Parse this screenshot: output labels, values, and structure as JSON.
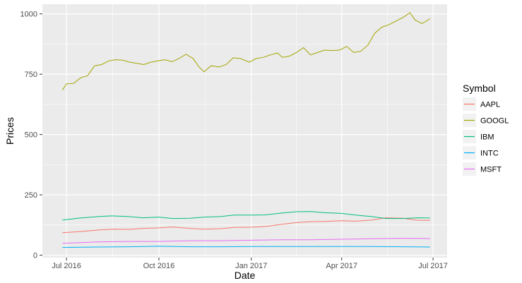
{
  "chart_data": {
    "type": "line",
    "xlabel": "Date",
    "ylabel": "Prices",
    "xlim": [
      "2016-06-07",
      "2017-07-15"
    ],
    "ylim": [
      -10,
      1040
    ],
    "x_ticks": [
      {
        "date": "2016-07-01",
        "label": "Jul 2016"
      },
      {
        "date": "2016-10-01",
        "label": "Oct 2016"
      },
      {
        "date": "2017-01-01",
        "label": "Jan 2017"
      },
      {
        "date": "2017-04-01",
        "label": "Apr 2017"
      },
      {
        "date": "2017-07-01",
        "label": "Jul 2017"
      }
    ],
    "y_ticks": [
      0,
      250,
      500,
      750,
      1000
    ],
    "y_tick_labels": [
      "0",
      "250",
      "500",
      "750",
      "1000"
    ],
    "grid": true,
    "panel_background": "#ebebeb",
    "grid_color": "#ffffff",
    "legend": {
      "title": "Symbol",
      "position": "right"
    },
    "series": [
      {
        "name": "AAPL",
        "color": "#f8766d",
        "points": [
          [
            "2016-06-27",
            93
          ],
          [
            "2016-07-15",
            98
          ],
          [
            "2016-08-01",
            104
          ],
          [
            "2016-08-15",
            108
          ],
          [
            "2016-09-01",
            107
          ],
          [
            "2016-09-15",
            111
          ],
          [
            "2016-10-01",
            113
          ],
          [
            "2016-10-15",
            117
          ],
          [
            "2016-11-01",
            111
          ],
          [
            "2016-11-15",
            108
          ],
          [
            "2016-12-01",
            110
          ],
          [
            "2016-12-15",
            115
          ],
          [
            "2017-01-03",
            116
          ],
          [
            "2017-01-15",
            119
          ],
          [
            "2017-02-01",
            128
          ],
          [
            "2017-02-15",
            135
          ],
          [
            "2017-03-01",
            139
          ],
          [
            "2017-03-15",
            140
          ],
          [
            "2017-04-01",
            143
          ],
          [
            "2017-04-15",
            141
          ],
          [
            "2017-05-01",
            146
          ],
          [
            "2017-05-15",
            155
          ],
          [
            "2017-06-01",
            153
          ],
          [
            "2017-06-15",
            145
          ],
          [
            "2017-06-28",
            144
          ]
        ]
      },
      {
        "name": "GOOGL",
        "color": "#a3a500",
        "points": [
          [
            "2016-06-27",
            684
          ],
          [
            "2016-07-01",
            710
          ],
          [
            "2016-07-08",
            712
          ],
          [
            "2016-07-15",
            735
          ],
          [
            "2016-07-22",
            744
          ],
          [
            "2016-07-29",
            785
          ],
          [
            "2016-08-05",
            790
          ],
          [
            "2016-08-12",
            805
          ],
          [
            "2016-08-19",
            810
          ],
          [
            "2016-08-26",
            808
          ],
          [
            "2016-09-02",
            800
          ],
          [
            "2016-09-09",
            795
          ],
          [
            "2016-09-16",
            790
          ],
          [
            "2016-09-23",
            800
          ],
          [
            "2016-09-30",
            805
          ],
          [
            "2016-10-07",
            810
          ],
          [
            "2016-10-14",
            802
          ],
          [
            "2016-10-21",
            815
          ],
          [
            "2016-10-28",
            833
          ],
          [
            "2016-11-04",
            815
          ],
          [
            "2016-11-10",
            780
          ],
          [
            "2016-11-15",
            760
          ],
          [
            "2016-11-22",
            785
          ],
          [
            "2016-11-30",
            780
          ],
          [
            "2016-12-07",
            790
          ],
          [
            "2016-12-14",
            818
          ],
          [
            "2016-12-21",
            815
          ],
          [
            "2016-12-30",
            800
          ],
          [
            "2017-01-06",
            815
          ],
          [
            "2017-01-13",
            820
          ],
          [
            "2017-01-20",
            830
          ],
          [
            "2017-01-27",
            838
          ],
          [
            "2017-02-01",
            820
          ],
          [
            "2017-02-08",
            825
          ],
          [
            "2017-02-15",
            840
          ],
          [
            "2017-02-22",
            860
          ],
          [
            "2017-03-01",
            830
          ],
          [
            "2017-03-08",
            840
          ],
          [
            "2017-03-15",
            850
          ],
          [
            "2017-03-22",
            848
          ],
          [
            "2017-03-30",
            850
          ],
          [
            "2017-04-06",
            865
          ],
          [
            "2017-04-13",
            840
          ],
          [
            "2017-04-20",
            845
          ],
          [
            "2017-04-27",
            870
          ],
          [
            "2017-05-04",
            920
          ],
          [
            "2017-05-11",
            945
          ],
          [
            "2017-05-18",
            955
          ],
          [
            "2017-05-25",
            970
          ],
          [
            "2017-06-01",
            985
          ],
          [
            "2017-06-08",
            1005
          ],
          [
            "2017-06-13",
            975
          ],
          [
            "2017-06-20",
            960
          ],
          [
            "2017-06-28",
            980
          ]
        ]
      },
      {
        "name": "IBM",
        "color": "#00bf7d",
        "points": [
          [
            "2016-06-27",
            146
          ],
          [
            "2016-07-15",
            154
          ],
          [
            "2016-08-01",
            160
          ],
          [
            "2016-08-15",
            163
          ],
          [
            "2016-09-01",
            160
          ],
          [
            "2016-09-15",
            155
          ],
          [
            "2016-10-01",
            158
          ],
          [
            "2016-10-15",
            152
          ],
          [
            "2016-11-01",
            153
          ],
          [
            "2016-11-15",
            158
          ],
          [
            "2016-12-01",
            160
          ],
          [
            "2016-12-15",
            166
          ],
          [
            "2017-01-03",
            166
          ],
          [
            "2017-01-15",
            167
          ],
          [
            "2017-02-01",
            175
          ],
          [
            "2017-02-15",
            180
          ],
          [
            "2017-03-01",
            181
          ],
          [
            "2017-03-15",
            176
          ],
          [
            "2017-04-01",
            173
          ],
          [
            "2017-04-15",
            166
          ],
          [
            "2017-05-01",
            160
          ],
          [
            "2017-05-15",
            152
          ],
          [
            "2017-06-01",
            152
          ],
          [
            "2017-06-15",
            155
          ],
          [
            "2017-06-28",
            154
          ]
        ]
      },
      {
        "name": "INTC",
        "color": "#00b0f6",
        "points": [
          [
            "2016-06-27",
            32
          ],
          [
            "2016-08-01",
            34
          ],
          [
            "2016-09-01",
            35
          ],
          [
            "2016-10-01",
            37
          ],
          [
            "2016-11-01",
            35
          ],
          [
            "2016-12-01",
            35
          ],
          [
            "2017-01-03",
            36
          ],
          [
            "2017-02-01",
            36
          ],
          [
            "2017-03-01",
            36
          ],
          [
            "2017-04-01",
            36
          ],
          [
            "2017-05-01",
            36
          ],
          [
            "2017-06-01",
            35
          ],
          [
            "2017-06-28",
            34
          ]
        ]
      },
      {
        "name": "MSFT",
        "color": "#e76bf3",
        "points": [
          [
            "2016-06-27",
            49
          ],
          [
            "2016-08-01",
            55
          ],
          [
            "2016-09-01",
            57
          ],
          [
            "2016-10-01",
            57
          ],
          [
            "2016-11-01",
            60
          ],
          [
            "2016-12-01",
            60
          ],
          [
            "2017-01-03",
            62
          ],
          [
            "2017-02-01",
            64
          ],
          [
            "2017-03-01",
            64
          ],
          [
            "2017-04-01",
            66
          ],
          [
            "2017-05-01",
            68
          ],
          [
            "2017-06-01",
            70
          ],
          [
            "2017-06-28",
            69
          ]
        ]
      }
    ]
  }
}
